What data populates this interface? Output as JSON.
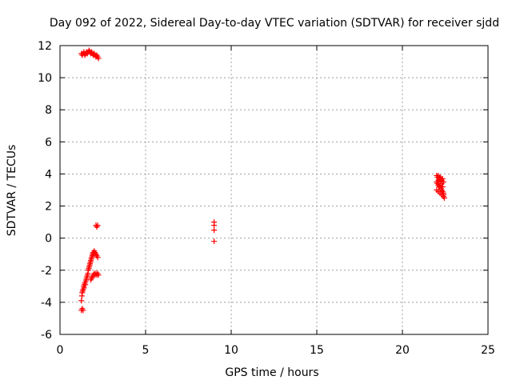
{
  "chart_data": {
    "type": "scatter",
    "title": "Day 092 of 2022, Sidereal Day-to-day VTEC variation (SDTVAR) for receiver sjdd",
    "xlabel": "GPS time / hours",
    "ylabel": "SDTVAR / TECUs",
    "xlim": [
      0,
      25
    ],
    "ylim": [
      -6,
      12
    ],
    "xticks": [
      0,
      5,
      10,
      15,
      20,
      25
    ],
    "yticks": [
      -6,
      -4,
      -2,
      0,
      2,
      4,
      6,
      8,
      10,
      12
    ],
    "xtick_labels": [
      "0",
      "5",
      "10",
      "15",
      "20",
      "25"
    ],
    "ytick_labels": [
      "-6",
      "-4",
      "-2",
      "0",
      "2",
      "4",
      "6",
      "8",
      "10",
      "12"
    ],
    "grid": true,
    "marker": "+",
    "series": [
      {
        "name": "SDTVAR",
        "color": "#ff0000",
        "x": [
          1.25,
          1.3,
          1.35,
          1.4,
          1.45,
          1.5,
          1.55,
          1.6,
          1.65,
          1.7,
          1.75,
          1.8,
          1.85,
          1.9,
          1.95,
          2.0,
          2.05,
          2.1,
          2.15,
          2.2,
          2.25,
          1.25,
          1.28,
          1.3,
          1.32,
          1.35,
          1.38,
          1.4,
          1.43,
          1.45,
          1.48,
          1.5,
          1.53,
          1.55,
          1.58,
          1.6,
          1.63,
          1.65,
          1.68,
          1.7,
          1.73,
          1.75,
          1.78,
          1.8,
          1.83,
          1.85,
          1.88,
          1.9,
          1.93,
          1.95,
          1.98,
          2.0,
          2.05,
          2.1,
          2.15,
          2.2,
          1.25,
          1.3,
          1.35,
          1.8,
          1.85,
          1.9,
          1.95,
          2.0,
          2.05,
          2.1,
          2.15,
          2.2,
          2.25,
          2.1,
          2.15,
          2.2,
          9.0,
          9.0,
          9.0,
          9.0,
          22.0,
          22.05,
          22.1,
          22.15,
          22.2,
          22.25,
          22.3,
          22.35,
          22.4,
          22.0,
          22.05,
          22.1,
          22.15,
          22.2,
          22.25,
          22.3,
          22.35,
          22.4,
          22.0,
          22.1,
          22.2,
          22.3,
          22.4,
          22.45,
          22.1,
          22.2,
          22.3,
          22.35,
          22.4
        ],
        "y": [
          11.5,
          11.4,
          11.5,
          11.6,
          11.4,
          11.5,
          11.6,
          11.5,
          11.6,
          11.7,
          11.6,
          11.5,
          11.6,
          11.5,
          11.4,
          11.5,
          11.4,
          11.3,
          11.4,
          11.3,
          11.2,
          -3.9,
          -3.6,
          -3.4,
          -3.3,
          -3.2,
          -3.0,
          -3.1,
          -2.9,
          -2.8,
          -2.9,
          -2.7,
          -2.6,
          -2.5,
          -2.4,
          -2.3,
          -2.2,
          -2.0,
          -1.9,
          -1.8,
          -1.7,
          -1.6,
          -1.5,
          -1.4,
          -1.3,
          -1.2,
          -1.1,
          -1.0,
          -0.9,
          -0.9,
          -1.0,
          -0.8,
          -0.9,
          -1.0,
          -1.1,
          -1.2,
          -4.5,
          -4.4,
          -4.5,
          -2.6,
          -2.5,
          -2.4,
          -2.3,
          -2.2,
          -2.3,
          -2.2,
          -2.3,
          -2.2,
          -2.3,
          0.8,
          0.7,
          0.8,
          1.0,
          0.8,
          0.5,
          -0.2,
          3.9,
          3.8,
          3.9,
          3.7,
          3.8,
          3.7,
          3.6,
          3.7,
          3.5,
          3.5,
          3.4,
          3.3,
          3.2,
          3.3,
          3.1,
          3.0,
          2.9,
          2.8,
          3.0,
          2.9,
          2.8,
          2.7,
          2.6,
          2.5,
          3.6,
          3.5,
          3.4,
          3.2,
          2.7
        ]
      }
    ]
  }
}
